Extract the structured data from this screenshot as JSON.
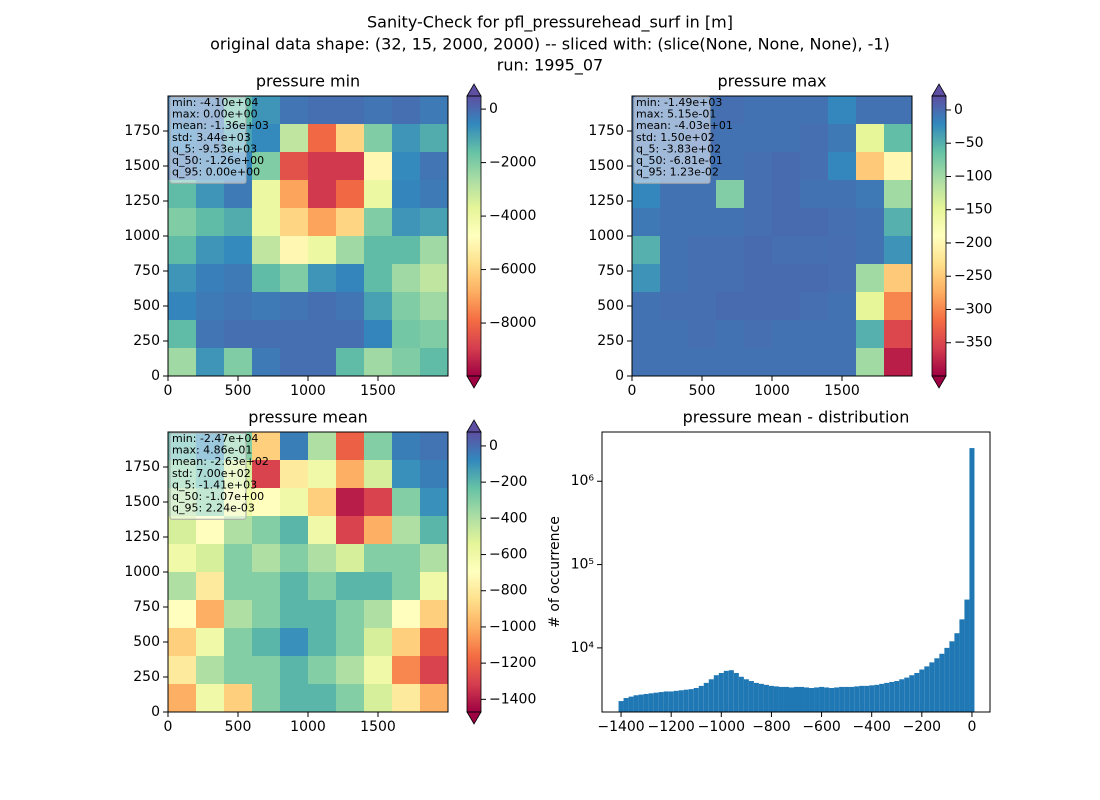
{
  "suptitle": [
    "Sanity-Check for pfl_pressurehead_surf in [m]",
    "original data shape: (32, 15, 2000, 2000) -- sliced with: (slice(None, None, None), -1)",
    "run: 1995_07"
  ],
  "colormap": [
    "#9e0142",
    "#d53e4f",
    "#f46d43",
    "#fdae61",
    "#fee08b",
    "#ffffbf",
    "#e6f598",
    "#abdda4",
    "#66c2a5",
    "#3288bd",
    "#5e4fa2"
  ],
  "chart_data": [
    {
      "type": "heatmap",
      "title": "pressure min",
      "xlim": [
        0,
        2000
      ],
      "ylim": [
        0,
        2000
      ],
      "xticks": [
        0,
        500,
        1000,
        1500
      ],
      "yticks": [
        0,
        250,
        500,
        750,
        1000,
        1250,
        1500,
        1750
      ],
      "clim": [
        -9980,
        490
      ],
      "extend": "both",
      "cticks": [
        0,
        {
          "value": -2000,
          "label": "−2000"
        },
        {
          "value": -4000,
          "label": "−4000"
        },
        {
          "value": -6000,
          "label": "−6000"
        },
        {
          "value": -8000,
          "label": "−8000"
        }
      ],
      "stats": [
        "min: -4.10e+04",
        "max: 0.00e+00",
        "mean: -1.36e+03",
        "std: 3.44e+03",
        "q_5: -9.53e+03",
        "q_50: -1.26e+00",
        "q_95: 0.00e+00"
      ],
      "values": [
        [
          -300,
          -200,
          -1500,
          -800,
          -200,
          -100,
          -100,
          -200,
          -100,
          -300
        ],
        [
          -500,
          -300,
          -1000,
          -600,
          -3000,
          -8000,
          -6000,
          -2000,
          -800,
          -1200
        ],
        [
          -200,
          -400,
          -500,
          -2000,
          -8500,
          -9000,
          -9000,
          -5000,
          -600,
          -200
        ],
        [
          -1500,
          -800,
          -300,
          -4000,
          -7000,
          -9000,
          -8000,
          -4000,
          -500,
          -300
        ],
        [
          -2000,
          -1500,
          -1200,
          -4000,
          -6000,
          -7000,
          -6000,
          -2000,
          -800,
          -1000
        ],
        [
          -1500,
          -800,
          -600,
          -3000,
          -5000,
          -4000,
          -2500,
          -1500,
          -1500,
          -2500
        ],
        [
          -800,
          -400,
          -300,
          -1500,
          -2000,
          -800,
          -500,
          -1500,
          -2500,
          -3000
        ],
        [
          -500,
          -300,
          -200,
          -300,
          -200,
          -100,
          -200,
          -1000,
          -2000,
          -2500
        ],
        [
          -1500,
          -200,
          -100,
          -100,
          -100,
          -100,
          -100,
          -500,
          -1800,
          -2000
        ],
        [
          -2500,
          -800,
          -2000,
          -300,
          -100,
          -100,
          -1500,
          -2500,
          -2000,
          -1500
        ]
      ]
    },
    {
      "type": "heatmap",
      "title": "pressure max",
      "xlim": [
        0,
        2000
      ],
      "ylim": [
        0,
        2000
      ],
      "xticks": [
        0,
        500,
        1000,
        1500
      ],
      "yticks": [
        0,
        250,
        500,
        750,
        1000,
        1250,
        1500,
        1750
      ],
      "clim": [
        -400,
        21
      ],
      "extend": "both",
      "cticks": [
        0,
        {
          "value": -50,
          "label": "−50"
        },
        {
          "value": -100,
          "label": "−100"
        },
        {
          "value": -150,
          "label": "−150"
        },
        {
          "value": -200,
          "label": "−200"
        },
        {
          "value": -250,
          "label": "−250"
        },
        {
          "value": -300,
          "label": "−300"
        },
        {
          "value": -350,
          "label": "−350"
        }
      ],
      "stats": [
        "min: -1.49e+03",
        "max: 5.15e-01",
        "mean: -4.03e+01",
        "std: 1.50e+02",
        "q_5: -3.83e+02",
        "q_50: -6.81e-01",
        "q_95: 1.23e-02"
      ],
      "values": [
        [
          -5,
          -5,
          -5,
          -3,
          -5,
          -5,
          -5,
          -20,
          -5,
          -5
        ],
        [
          -5,
          -5,
          -3,
          -5,
          -5,
          -5,
          -3,
          -10,
          -150,
          -60
        ],
        [
          -10,
          -5,
          -5,
          -5,
          -3,
          0.2,
          -3,
          -20,
          -250,
          -200
        ],
        [
          -20,
          -5,
          -5,
          -80,
          -3,
          0.1,
          -5,
          -5,
          -10,
          -100
        ],
        [
          -10,
          -5,
          -5,
          -5,
          -3,
          0.2,
          0.1,
          -3,
          -5,
          -50
        ],
        [
          -50,
          -5,
          -3,
          -3,
          0.1,
          -3,
          -3,
          -2,
          -5,
          -30
        ],
        [
          -30,
          -5,
          -3,
          -3,
          0.1,
          0.2,
          0.1,
          -2,
          -100,
          -250
        ],
        [
          -5,
          -3,
          -3,
          0.1,
          0.2,
          0.2,
          -3,
          -5,
          -150,
          -300
        ],
        [
          -5,
          -5,
          -3,
          -5,
          -3,
          -5,
          -5,
          -5,
          -50,
          -350
        ],
        [
          -5,
          -5,
          -5,
          -5,
          -5,
          -5,
          -5,
          -5,
          -100,
          -380
        ]
      ]
    },
    {
      "type": "heatmap",
      "title": "pressure mean",
      "xlim": [
        0,
        2000
      ],
      "ylim": [
        0,
        2000
      ],
      "xticks": [
        0,
        500,
        1000,
        1500
      ],
      "yticks": [
        0,
        250,
        500,
        750,
        1000,
        1250,
        1500,
        1750
      ],
      "clim": [
        -1470,
        77
      ],
      "extend": "both",
      "cticks": [
        0,
        {
          "value": -200,
          "label": "−200"
        },
        {
          "value": -400,
          "label": "−400"
        },
        {
          "value": -600,
          "label": "−600"
        },
        {
          "value": -800,
          "label": "−800"
        },
        {
          "value": -1000,
          "label": "−1000"
        },
        {
          "value": -1200,
          "label": "−1200"
        },
        {
          "value": -1400,
          "label": "−1400"
        }
      ],
      "stats": [
        "min: -2.47e+04",
        "max: 4.86e-01",
        "mean: -2.63e+02",
        "std: 7.00e+02",
        "q_5: -1.41e+03",
        "q_50: -1.07e+00",
        "q_95: 2.24e-03"
      ],
      "values": [
        [
          -200,
          -100,
          -300,
          -900,
          -50,
          -400,
          -1200,
          -300,
          -50,
          -20
        ],
        [
          -300,
          -200,
          -500,
          -1300,
          -800,
          -600,
          -1000,
          -500,
          -100,
          -50
        ],
        [
          -400,
          -300,
          -600,
          -700,
          -600,
          -900,
          -1400,
          -1300,
          -300,
          -100
        ],
        [
          -500,
          -700,
          -400,
          -300,
          -200,
          -600,
          -1300,
          -1000,
          -400,
          -200
        ],
        [
          -600,
          -500,
          -300,
          -400,
          -300,
          -400,
          -500,
          -300,
          -300,
          -400
        ],
        [
          -400,
          -800,
          -300,
          -300,
          -200,
          -300,
          -200,
          -200,
          -300,
          -600
        ],
        [
          -700,
          -1000,
          -400,
          -300,
          -200,
          -200,
          -300,
          -400,
          -700,
          -900
        ],
        [
          -900,
          -600,
          -300,
          -200,
          -100,
          -200,
          -300,
          -500,
          -900,
          -1200
        ],
        [
          -800,
          -400,
          -300,
          -300,
          -200,
          -300,
          -400,
          -600,
          -1100,
          -1300
        ],
        [
          -1000,
          -600,
          -900,
          -300,
          -200,
          -200,
          -300,
          -500,
          -800,
          -1000
        ]
      ]
    },
    {
      "type": "histogram",
      "title": "pressure mean - distribution",
      "ylabel": "# of occurrence",
      "color": "#1f77b4",
      "log_y": true,
      "xlim": [
        -1476,
        72
      ],
      "ylim": [
        1700,
        3900000
      ],
      "xticks": [
        {
          "value": -1400,
          "label": "−1400"
        },
        {
          "value": -1200,
          "label": "−1200"
        },
        {
          "value": -1000,
          "label": "−1000"
        },
        {
          "value": -800,
          "label": "−800"
        },
        {
          "value": -600,
          "label": "−600"
        },
        {
          "value": -400,
          "label": "−400"
        },
        {
          "value": -200,
          "label": "−200"
        },
        0
      ],
      "yticks": [
        {
          "value": 10000,
          "label": "10⁴"
        },
        {
          "value": 100000,
          "label": "10⁵"
        },
        {
          "value": 1000000,
          "label": "10⁶"
        }
      ],
      "bins": [
        -1410,
        -1390,
        -1370,
        -1350,
        -1330,
        -1310,
        -1290,
        -1270,
        -1250,
        -1230,
        -1210,
        -1190,
        -1170,
        -1150,
        -1130,
        -1110,
        -1090,
        -1070,
        -1050,
        -1030,
        -1010,
        -990,
        -970,
        -950,
        -930,
        -910,
        -890,
        -870,
        -850,
        -830,
        -810,
        -790,
        -770,
        -750,
        -730,
        -710,
        -690,
        -670,
        -650,
        -630,
        -610,
        -590,
        -570,
        -550,
        -530,
        -510,
        -490,
        -470,
        -450,
        -430,
        -410,
        -390,
        -370,
        -350,
        -330,
        -310,
        -290,
        -270,
        -250,
        -230,
        -210,
        -190,
        -170,
        -150,
        -130,
        -110,
        -90,
        -70,
        -50,
        -30,
        -10,
        10
      ],
      "values": [
        2300,
        2500,
        2600,
        2700,
        2750,
        2800,
        2850,
        2900,
        2950,
        3000,
        3000,
        3050,
        3100,
        3150,
        3200,
        3300,
        3500,
        3800,
        4200,
        4700,
        5000,
        5300,
        5400,
        5000,
        4500,
        4200,
        4000,
        3800,
        3700,
        3600,
        3500,
        3450,
        3400,
        3400,
        3350,
        3400,
        3400,
        3350,
        3300,
        3350,
        3400,
        3350,
        3300,
        3350,
        3400,
        3400,
        3400,
        3450,
        3500,
        3500,
        3550,
        3600,
        3700,
        3800,
        3900,
        4000,
        4200,
        4400,
        4700,
        5000,
        5500,
        6000,
        6700,
        7500,
        8500,
        10000,
        12000,
        15000,
        22000,
        38000,
        2500000
      ]
    }
  ]
}
